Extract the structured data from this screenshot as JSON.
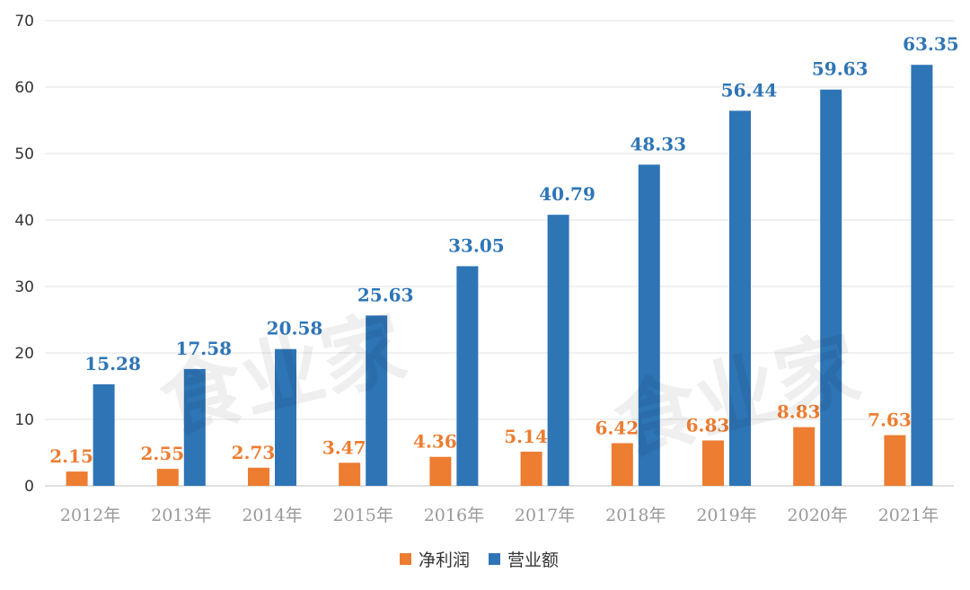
{
  "chart_data": {
    "type": "bar",
    "title": "",
    "xlabel": "",
    "ylabel": "",
    "ylim": [
      0,
      70
    ],
    "yticks": [
      0,
      10,
      20,
      30,
      40,
      50,
      60,
      70
    ],
    "grid": true,
    "legend_position": "bottom-center",
    "categories": [
      "2012年",
      "2013年",
      "2014年",
      "2015年",
      "2016年",
      "2017年",
      "2018年",
      "2019年",
      "2020年",
      "2021年"
    ],
    "series": [
      {
        "name": "净利润",
        "color": "#ED7D31",
        "values": [
          2.15,
          2.55,
          2.73,
          3.47,
          4.36,
          5.14,
          6.42,
          6.83,
          8.83,
          7.63
        ]
      },
      {
        "name": "营业额",
        "color": "#2E75B6",
        "values": [
          15.28,
          17.58,
          20.58,
          25.63,
          33.05,
          40.79,
          48.33,
          56.44,
          59.63,
          63.35
        ]
      }
    ]
  },
  "watermark": [
    "食业家",
    "食业家"
  ]
}
